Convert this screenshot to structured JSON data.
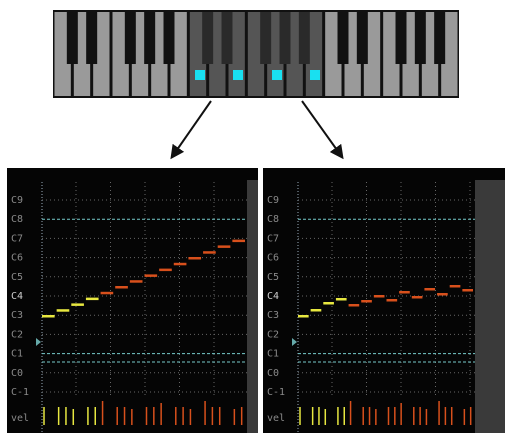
{
  "panels": [
    {
      "pitch_labels": [
        "C9",
        "C8",
        "C7",
        "C6",
        "C5",
        "C4",
        "C3",
        "C2",
        "C1",
        "C0",
        "C-1"
      ],
      "velocity_label": "vel"
    },
    {
      "pitch_labels": [
        "C9",
        "C8",
        "C7",
        "C6",
        "C5",
        "C4",
        "C3",
        "C2",
        "C1",
        "C0",
        "C-1"
      ],
      "velocity_label": "vel"
    }
  ]
}
